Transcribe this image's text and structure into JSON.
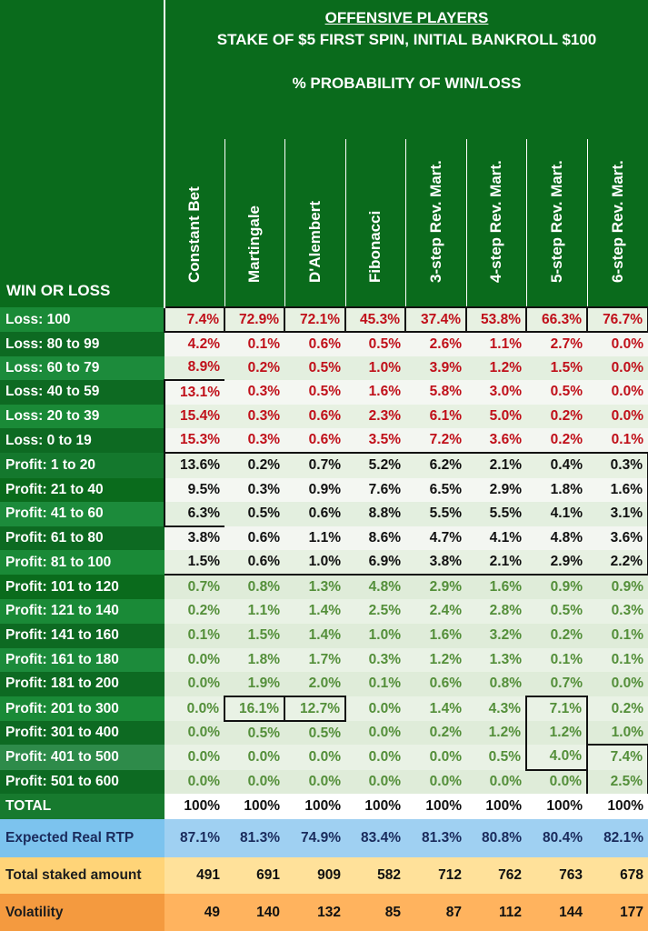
{
  "header": {
    "title": "OFFENSIVE PLAYERS",
    "subtitle": "STAKE OF $5 FIRST SPIN, INITIAL BANKROLL $100",
    "section": "% PROBABILITY OF WIN/LOSS",
    "corner_label": "WIN OR LOSS"
  },
  "columns": [
    "Constant Bet",
    "Martingale",
    "D'Alembert",
    "Fibonacci",
    "3-step Rev. Mart.",
    "4-step Rev. Mart.",
    "5-step Rev. Mart.",
    "6-step Rev. Mart."
  ],
  "rows": [
    {
      "label": "Loss: 100",
      "values": [
        "7.4%",
        "72.9%",
        "72.1%",
        "45.3%",
        "37.4%",
        "53.8%",
        "66.3%",
        "76.7%"
      ]
    },
    {
      "label": "Loss: 80 to 99",
      "values": [
        "4.2%",
        "0.1%",
        "0.6%",
        "0.5%",
        "2.6%",
        "1.1%",
        "2.7%",
        "0.0%"
      ]
    },
    {
      "label": "Loss: 60 to 79",
      "values": [
        "8.9%",
        "0.2%",
        "0.5%",
        "1.0%",
        "3.9%",
        "1.2%",
        "1.5%",
        "0.0%"
      ]
    },
    {
      "label": "Loss: 40 to 59",
      "values": [
        "13.1%",
        "0.3%",
        "0.5%",
        "1.6%",
        "5.8%",
        "3.0%",
        "0.5%",
        "0.0%"
      ]
    },
    {
      "label": "Loss: 20 to 39",
      "values": [
        "15.4%",
        "0.3%",
        "0.6%",
        "2.3%",
        "6.1%",
        "5.0%",
        "0.2%",
        "0.0%"
      ]
    },
    {
      "label": "Loss: 0 to 19",
      "values": [
        "15.3%",
        "0.3%",
        "0.6%",
        "3.5%",
        "7.2%",
        "3.6%",
        "0.2%",
        "0.1%"
      ]
    },
    {
      "label": "Profit: 1 to 20",
      "values": [
        "13.6%",
        "0.2%",
        "0.7%",
        "5.2%",
        "6.2%",
        "2.1%",
        "0.4%",
        "0.3%"
      ]
    },
    {
      "label": "Profit: 21 to 40",
      "values": [
        "9.5%",
        "0.3%",
        "0.9%",
        "7.6%",
        "6.5%",
        "2.9%",
        "1.8%",
        "1.6%"
      ]
    },
    {
      "label": "Profit: 41 to 60",
      "values": [
        "6.3%",
        "0.5%",
        "0.6%",
        "8.8%",
        "5.5%",
        "5.5%",
        "4.1%",
        "3.1%"
      ]
    },
    {
      "label": "Profit: 61 to 80",
      "values": [
        "3.8%",
        "0.6%",
        "1.1%",
        "8.6%",
        "4.7%",
        "4.1%",
        "4.8%",
        "3.6%"
      ]
    },
    {
      "label": "Profit: 81 to 100",
      "values": [
        "1.5%",
        "0.6%",
        "1.0%",
        "6.9%",
        "3.8%",
        "2.1%",
        "2.9%",
        "2.2%"
      ]
    },
    {
      "label": "Profit: 101 to 120",
      "values": [
        "0.7%",
        "0.8%",
        "1.3%",
        "4.8%",
        "2.9%",
        "1.6%",
        "0.9%",
        "0.9%"
      ]
    },
    {
      "label": "Profit: 121 to 140",
      "values": [
        "0.2%",
        "1.1%",
        "1.4%",
        "2.5%",
        "2.4%",
        "2.8%",
        "0.5%",
        "0.3%"
      ]
    },
    {
      "label": "Profit: 141 to 160",
      "values": [
        "0.1%",
        "1.5%",
        "1.4%",
        "1.0%",
        "1.6%",
        "3.2%",
        "0.2%",
        "0.1%"
      ]
    },
    {
      "label": "Profit: 161 to 180",
      "values": [
        "0.0%",
        "1.8%",
        "1.7%",
        "0.3%",
        "1.2%",
        "1.3%",
        "0.1%",
        "0.1%"
      ]
    },
    {
      "label": "Profit: 181 to 200",
      "values": [
        "0.0%",
        "1.9%",
        "2.0%",
        "0.1%",
        "0.6%",
        "0.8%",
        "0.7%",
        "0.0%"
      ]
    },
    {
      "label": "Profit: 201 to 300",
      "values": [
        "0.0%",
        "16.1%",
        "12.7%",
        "0.0%",
        "1.4%",
        "4.3%",
        "7.1%",
        "0.2%"
      ]
    },
    {
      "label": "Profit: 301 to 400",
      "values": [
        "0.0%",
        "0.5%",
        "0.5%",
        "0.0%",
        "0.2%",
        "1.2%",
        "1.2%",
        "1.0%"
      ]
    },
    {
      "label": "Profit: 401 to 500",
      "values": [
        "0.0%",
        "0.0%",
        "0.0%",
        "0.0%",
        "0.0%",
        "0.5%",
        "4.0%",
        "7.4%"
      ]
    },
    {
      "label": "Profit: 501 to 600",
      "values": [
        "0.0%",
        "0.0%",
        "0.0%",
        "0.0%",
        "0.0%",
        "0.0%",
        "0.0%",
        "2.5%"
      ]
    }
  ],
  "summary": {
    "total": {
      "label": "TOTAL",
      "values": [
        "100%",
        "100%",
        "100%",
        "100%",
        "100%",
        "100%",
        "100%",
        "100%"
      ]
    },
    "rtp": {
      "label": "Expected Real RTP",
      "values": [
        "87.1%",
        "81.3%",
        "74.9%",
        "83.4%",
        "81.3%",
        "80.8%",
        "80.4%",
        "82.1%"
      ]
    },
    "staked": {
      "label": "Total staked amount",
      "values": [
        "491",
        "691",
        "909",
        "582",
        "712",
        "762",
        "763",
        "678"
      ]
    },
    "volatility": {
      "label": "Volatility",
      "values": [
        "49",
        "140",
        "132",
        "85",
        "87",
        "112",
        "144",
        "177"
      ]
    }
  },
  "colors": {
    "header_green": "#0a6b1c",
    "loss_red": "#c0101a",
    "profit_black": "#111111",
    "profit_green": "#548f3a",
    "rtp_blue": "#9fd0f2",
    "staked_yellow": "#ffe19a",
    "volatility_orange": "#ffb35e"
  }
}
